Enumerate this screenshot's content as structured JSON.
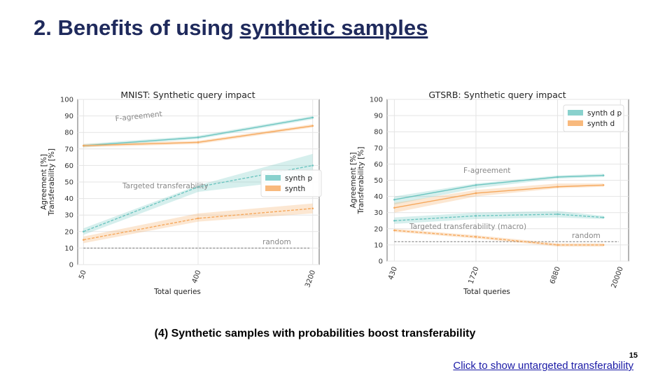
{
  "slide": {
    "title_prefix": "2. Benefits of using ",
    "title_link": "synthetic samples",
    "caption": "(4) Synthetic samples with probabilities boost transferability",
    "page_number": "15",
    "footer_link": "Click to show untargeted transferability"
  },
  "chart_data": [
    {
      "type": "line",
      "title": "MNIST: Synthetic query impact",
      "xlabel": "Total queries",
      "ylabel": "Agreement [%]\nTransferability [%]",
      "x_scale": "log",
      "xticks": [
        50,
        400,
        3200
      ],
      "xlim": [
        45,
        3600
      ],
      "yticks": [
        0,
        10,
        20,
        30,
        40,
        50,
        60,
        70,
        80,
        90,
        100
      ],
      "ylim": [
        0,
        100
      ],
      "grid": true,
      "legend": {
        "placement": "center-right",
        "entries": [
          "synth p",
          "synth"
        ]
      },
      "annotations": [
        "F-agreement",
        "Targeted transferability",
        "random"
      ],
      "random_baseline": 10,
      "series": [
        {
          "legend": "synth p",
          "group": "F-agreement",
          "color": "#6cc5c0",
          "x": [
            50,
            400,
            3200
          ],
          "y": [
            72,
            77,
            89
          ],
          "band": [
            [
              71,
              73
            ],
            [
              76,
              78
            ],
            [
              88,
              90
            ]
          ]
        },
        {
          "legend": "synth",
          "group": "F-agreement",
          "color": "#f6a85c",
          "x": [
            50,
            400,
            3200
          ],
          "y": [
            72,
            74,
            84
          ],
          "band": [
            [
              71,
              73
            ],
            [
              73,
              75
            ],
            [
              83,
              85
            ]
          ]
        },
        {
          "legend": "synth p",
          "group": "Targeted transferability",
          "color": "#6cc5c0",
          "x": [
            50,
            400,
            3200
          ],
          "y": [
            20,
            47,
            60
          ],
          "band": [
            [
              18,
              22
            ],
            [
              44,
              48
            ],
            [
              52,
              67
            ]
          ]
        },
        {
          "legend": "synth",
          "group": "Targeted transferability",
          "color": "#f6a85c",
          "x": [
            50,
            400,
            3200
          ],
          "y": [
            15,
            28,
            34
          ],
          "band": [
            [
              13,
              17
            ],
            [
              26,
              31
            ],
            [
              31,
              37
            ]
          ]
        }
      ]
    },
    {
      "type": "line",
      "title": "GTSRB: Synthetic query impact",
      "xlabel": "Total queries",
      "ylabel": "Agreement [%]\nTransferability [%]",
      "x_scale": "log",
      "xticks": [
        430,
        1720,
        6880,
        20000
      ],
      "xlim": [
        380,
        23000
      ],
      "yticks": [
        0,
        10,
        20,
        30,
        40,
        50,
        60,
        70,
        80,
        90,
        100
      ],
      "ylim": [
        0,
        100
      ],
      "grid": true,
      "legend": {
        "placement": "top-right",
        "entries": [
          "synth d p",
          "synth d"
        ]
      },
      "annotations": [
        "F-agreement",
        "Targeted transferability (macro)",
        "random"
      ],
      "random_baseline": 12,
      "series": [
        {
          "legend": "synth d p",
          "group": "F-agreement",
          "color": "#6cc5c0",
          "x": [
            430,
            1720,
            6880,
            15000
          ],
          "y": [
            38,
            47,
            52,
            53
          ],
          "band": [
            [
              35,
              40
            ],
            [
              45,
              48
            ],
            [
              51,
              53
            ],
            [
              52,
              54
            ]
          ]
        },
        {
          "legend": "synth d",
          "group": "F-agreement",
          "color": "#f6a85c",
          "x": [
            430,
            1720,
            6880,
            15000
          ],
          "y": [
            33,
            42,
            46,
            47
          ],
          "band": [
            [
              30,
              36
            ],
            [
              40,
              44
            ],
            [
              45,
              48
            ],
            [
              46,
              48
            ]
          ]
        },
        {
          "legend": "synth d p",
          "group": "Targeted transferability (macro)",
          "color": "#6cc5c0",
          "x": [
            430,
            1720,
            6880,
            15000
          ],
          "y": [
            25,
            28,
            29,
            27
          ],
          "band": [
            [
              23,
              27
            ],
            [
              26,
              30
            ],
            [
              27,
              31
            ],
            [
              26,
              28
            ]
          ]
        },
        {
          "legend": "synth d",
          "group": "Targeted transferability (macro)",
          "color": "#f6a85c",
          "x": [
            430,
            1720,
            6880,
            15000
          ],
          "y": [
            19,
            15,
            10,
            10
          ],
          "band": [
            [
              18,
              20
            ],
            [
              14,
              16
            ],
            [
              9,
              11
            ],
            [
              9,
              11
            ]
          ]
        }
      ]
    }
  ]
}
